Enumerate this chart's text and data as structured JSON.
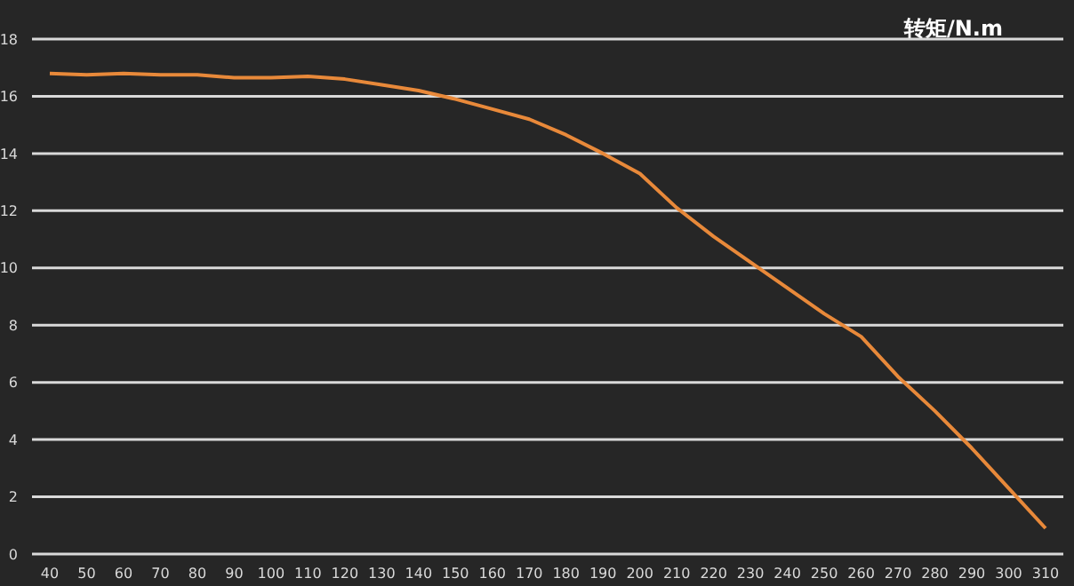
{
  "chart_data": {
    "type": "line",
    "ylabel": "转矩/N.m",
    "categories": [
      "40",
      "50",
      "60",
      "70",
      "80",
      "90",
      "100",
      "110",
      "120",
      "130",
      "140",
      "150",
      "160",
      "170",
      "180",
      "190",
      "200",
      "210",
      "220",
      "230",
      "240",
      "250",
      "260",
      "270",
      "280",
      "290",
      "300",
      "310"
    ],
    "series": [
      {
        "color": "#e8893a",
        "values": [
          16.8,
          16.75,
          16.8,
          16.75,
          16.75,
          16.65,
          16.65,
          16.7,
          16.6,
          16.4,
          16.2,
          15.9,
          15.55,
          15.2,
          14.65,
          14.0,
          13.3,
          12.1,
          11.1,
          10.2,
          9.3,
          8.4,
          7.6,
          6.2,
          5.0,
          3.7,
          2.3,
          0.9
        ]
      }
    ],
    "ylim": [
      0,
      18
    ],
    "yticks": [
      0,
      2,
      4,
      6,
      8,
      10,
      12,
      14,
      16,
      18
    ],
    "grid": "y",
    "marker": "none",
    "line_style": "solid"
  }
}
